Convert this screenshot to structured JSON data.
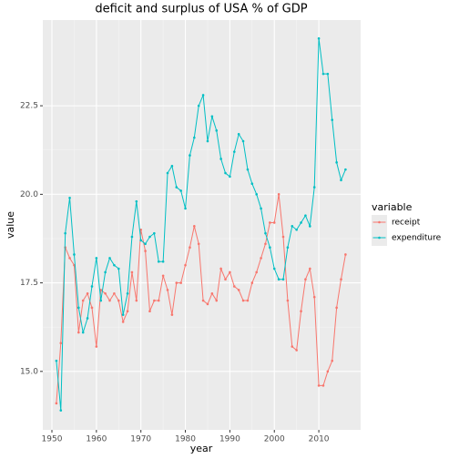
{
  "chart_data": {
    "type": "line",
    "title": "deficit and surplus of USA % of GDP",
    "x_label": "year",
    "y_label": "value",
    "legend_title": "variable",
    "legend_position": "right",
    "grid": true,
    "x": [
      1951,
      1952,
      1953,
      1954,
      1955,
      1956,
      1957,
      1958,
      1959,
      1960,
      1961,
      1962,
      1963,
      1964,
      1965,
      1966,
      1967,
      1968,
      1969,
      1970,
      1971,
      1972,
      1973,
      1974,
      1975,
      1976,
      1977,
      1978,
      1979,
      1980,
      1981,
      1982,
      1983,
      1984,
      1985,
      1986,
      1987,
      1988,
      1989,
      1990,
      1991,
      1992,
      1993,
      1994,
      1995,
      1996,
      1997,
      1998,
      1999,
      2000,
      2001,
      2002,
      2003,
      2004,
      2005,
      2006,
      2007,
      2008,
      2009,
      2010,
      2011,
      2012,
      2013,
      2014,
      2015,
      2016
    ],
    "series": [
      {
        "name": "receipt",
        "color": "#f8766d",
        "values": [
          14.1,
          15.8,
          18.5,
          18.2,
          18.0,
          16.1,
          17.0,
          17.2,
          16.8,
          15.7,
          17.3,
          17.2,
          17.0,
          17.2,
          17.0,
          16.4,
          16.7,
          17.8,
          17.0,
          19.0,
          18.4,
          16.7,
          17.0,
          17.0,
          17.7,
          17.3,
          16.6,
          17.5,
          17.5,
          18.0,
          18.5,
          19.1,
          18.6,
          17.0,
          16.9,
          17.2,
          17.0,
          17.9,
          17.6,
          17.8,
          17.4,
          17.3,
          17.0,
          17.0,
          17.5,
          17.8,
          18.2,
          18.6,
          19.2,
          19.2,
          20.0,
          18.8,
          17.0,
          15.7,
          15.6,
          16.7,
          17.6,
          17.9,
          17.1,
          14.6,
          14.6,
          15.0,
          15.3,
          16.8,
          17.6,
          18.3
        ]
      },
      {
        "name": "expenditure",
        "color": "#00bfc4",
        "values": [
          15.3,
          13.9,
          18.9,
          19.9,
          18.3,
          16.8,
          16.1,
          16.5,
          17.4,
          18.2,
          17.0,
          17.8,
          18.2,
          18.0,
          17.9,
          16.6,
          17.2,
          18.8,
          19.8,
          18.7,
          18.6,
          18.8,
          18.9,
          18.1,
          18.1,
          20.6,
          20.8,
          20.2,
          20.1,
          19.6,
          21.1,
          21.6,
          22.5,
          22.8,
          21.5,
          22.2,
          21.8,
          21.0,
          20.6,
          20.5,
          21.2,
          21.7,
          21.5,
          20.7,
          20.3,
          20.0,
          19.6,
          18.9,
          18.5,
          17.9,
          17.6,
          17.6,
          18.5,
          19.1,
          19.0,
          19.2,
          19.4,
          19.1,
          20.2,
          24.4,
          23.4,
          23.4,
          22.1,
          20.9,
          20.4,
          20.7
        ]
      }
    ],
    "xlim": [
      1947.95,
      2019.4
    ],
    "xticks": [
      1950,
      1960,
      1970,
      1980,
      1990,
      2000,
      2010
    ],
    "ylim": [
      13.35,
      24.92
    ],
    "yticks": [
      {
        "value": 15,
        "label": "15.0"
      },
      17.5,
      {
        "value": 20,
        "label": "20.0"
      },
      22.5
    ]
  }
}
